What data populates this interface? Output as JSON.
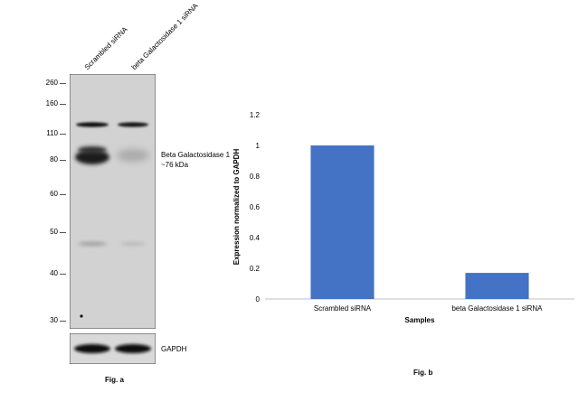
{
  "blot": {
    "lane_labels": [
      "Scrambled siRNA",
      "beta Galactosidase 1 siRNA"
    ],
    "mw_markers": [
      "260",
      "160",
      "110",
      "80",
      "60",
      "50",
      "40",
      "30"
    ],
    "band_label_line1": "Beta Galactosidase 1",
    "band_label_line2": "~76 kDa",
    "loading_control_label": "GAPDH",
    "figure_label": "Fig. a"
  },
  "chart_data": {
    "type": "bar",
    "categories": [
      "Scrambled siRNA",
      "beta Galactosidase 1 siRNA"
    ],
    "values": [
      1.0,
      0.17
    ],
    "xlabel": "Samples",
    "ylabel": "Expression normalized to GAPDH",
    "ylim": [
      0,
      1.2
    ],
    "yticks": [
      "0",
      "0.2",
      "0.4",
      "0.6",
      "0.8",
      "1",
      "1.2"
    ],
    "bar_color": "#4472C4",
    "grid": false,
    "figure_label": "Fig. b"
  }
}
